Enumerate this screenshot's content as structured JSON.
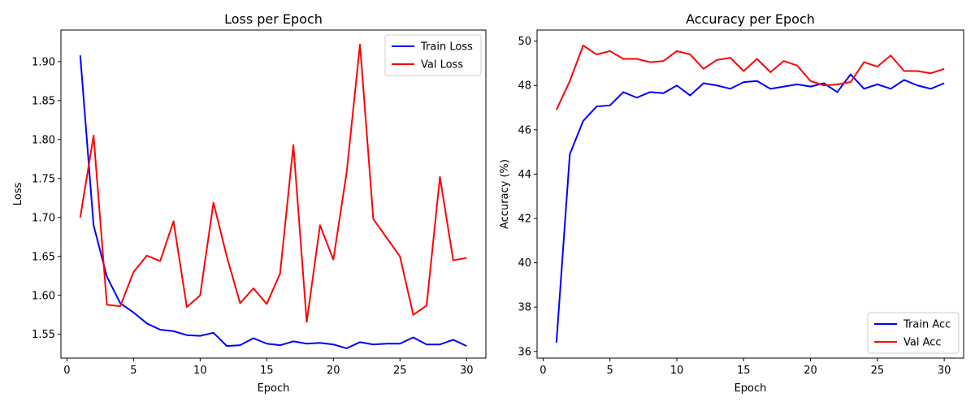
{
  "chart_data": [
    {
      "type": "line",
      "title": "Loss per Epoch",
      "xlabel": "Epoch",
      "ylabel": "Loss",
      "xlim": [
        -0.45,
        31.45
      ],
      "ylim": [
        1.5195,
        1.9405
      ],
      "xticks": [
        0,
        5,
        10,
        15,
        20,
        25,
        30
      ],
      "yticks": [
        1.55,
        1.6,
        1.65,
        1.7,
        1.75,
        1.8,
        1.85,
        1.9
      ],
      "ytick_labels": [
        "1.55",
        "1.60",
        "1.65",
        "1.70",
        "1.75",
        "1.80",
        "1.85",
        "1.90"
      ],
      "legend_position": "top-right",
      "grid": false,
      "x": [
        1,
        2,
        3,
        4,
        5,
        6,
        7,
        8,
        9,
        10,
        11,
        12,
        13,
        14,
        15,
        16,
        17,
        18,
        19,
        20,
        21,
        22,
        23,
        24,
        25,
        26,
        27,
        28,
        29,
        30
      ],
      "series": [
        {
          "name": "Train Loss",
          "color": "#0000ff",
          "values": [
            1.908,
            1.69,
            1.624,
            1.59,
            1.578,
            1.564,
            1.556,
            1.554,
            1.549,
            1.548,
            1.552,
            1.535,
            1.536,
            1.545,
            1.538,
            1.536,
            1.541,
            1.538,
            1.539,
            1.537,
            1.532,
            1.54,
            1.537,
            1.538,
            1.538,
            1.546,
            1.537,
            1.537,
            1.543,
            1.535
          ]
        },
        {
          "name": "Val Loss",
          "color": "#ff0000",
          "values": [
            1.7,
            1.805,
            1.588,
            1.586,
            1.63,
            1.651,
            1.644,
            1.695,
            1.585,
            1.6,
            1.719,
            1.65,
            1.59,
            1.609,
            1.589,
            1.628,
            1.793,
            1.566,
            1.69,
            1.646,
            1.758,
            1.922,
            1.698,
            1.674,
            1.65,
            1.575,
            1.587,
            1.752,
            1.645,
            1.648
          ]
        }
      ]
    },
    {
      "type": "line",
      "title": "Accuracy per Epoch",
      "xlabel": "Epoch",
      "ylabel": "Accuracy (%)",
      "xlim": [
        -0.45,
        31.45
      ],
      "ylim": [
        35.7,
        50.5
      ],
      "xticks": [
        0,
        5,
        10,
        15,
        20,
        25,
        30
      ],
      "yticks": [
        36,
        38,
        40,
        42,
        44,
        46,
        48,
        50
      ],
      "ytick_labels": [
        "36",
        "38",
        "40",
        "42",
        "44",
        "46",
        "48",
        "50"
      ],
      "legend_position": "bottom-right",
      "grid": false,
      "x": [
        1,
        2,
        3,
        4,
        5,
        6,
        7,
        8,
        9,
        10,
        11,
        12,
        13,
        14,
        15,
        16,
        17,
        18,
        19,
        20,
        21,
        22,
        23,
        24,
        25,
        26,
        27,
        28,
        29,
        30
      ],
      "series": [
        {
          "name": "Train Acc",
          "color": "#0000ff",
          "values": [
            36.4,
            44.9,
            46.4,
            47.05,
            47.1,
            47.7,
            47.45,
            47.7,
            47.65,
            48.0,
            47.55,
            48.1,
            48.0,
            47.85,
            48.15,
            48.2,
            47.85,
            47.95,
            48.05,
            47.95,
            48.1,
            47.7,
            48.5,
            47.85,
            48.05,
            47.85,
            48.25,
            48.0,
            47.85,
            48.1
          ]
        },
        {
          "name": "Val Acc",
          "color": "#ff0000",
          "values": [
            46.9,
            48.2,
            49.8,
            49.4,
            49.55,
            49.2,
            49.2,
            49.05,
            49.1,
            49.55,
            49.4,
            48.75,
            49.15,
            49.25,
            48.65,
            49.2,
            48.6,
            49.1,
            48.9,
            48.2,
            48.0,
            48.05,
            48.15,
            49.05,
            48.85,
            49.35,
            48.65,
            48.65,
            48.55,
            48.75
          ]
        }
      ]
    }
  ]
}
